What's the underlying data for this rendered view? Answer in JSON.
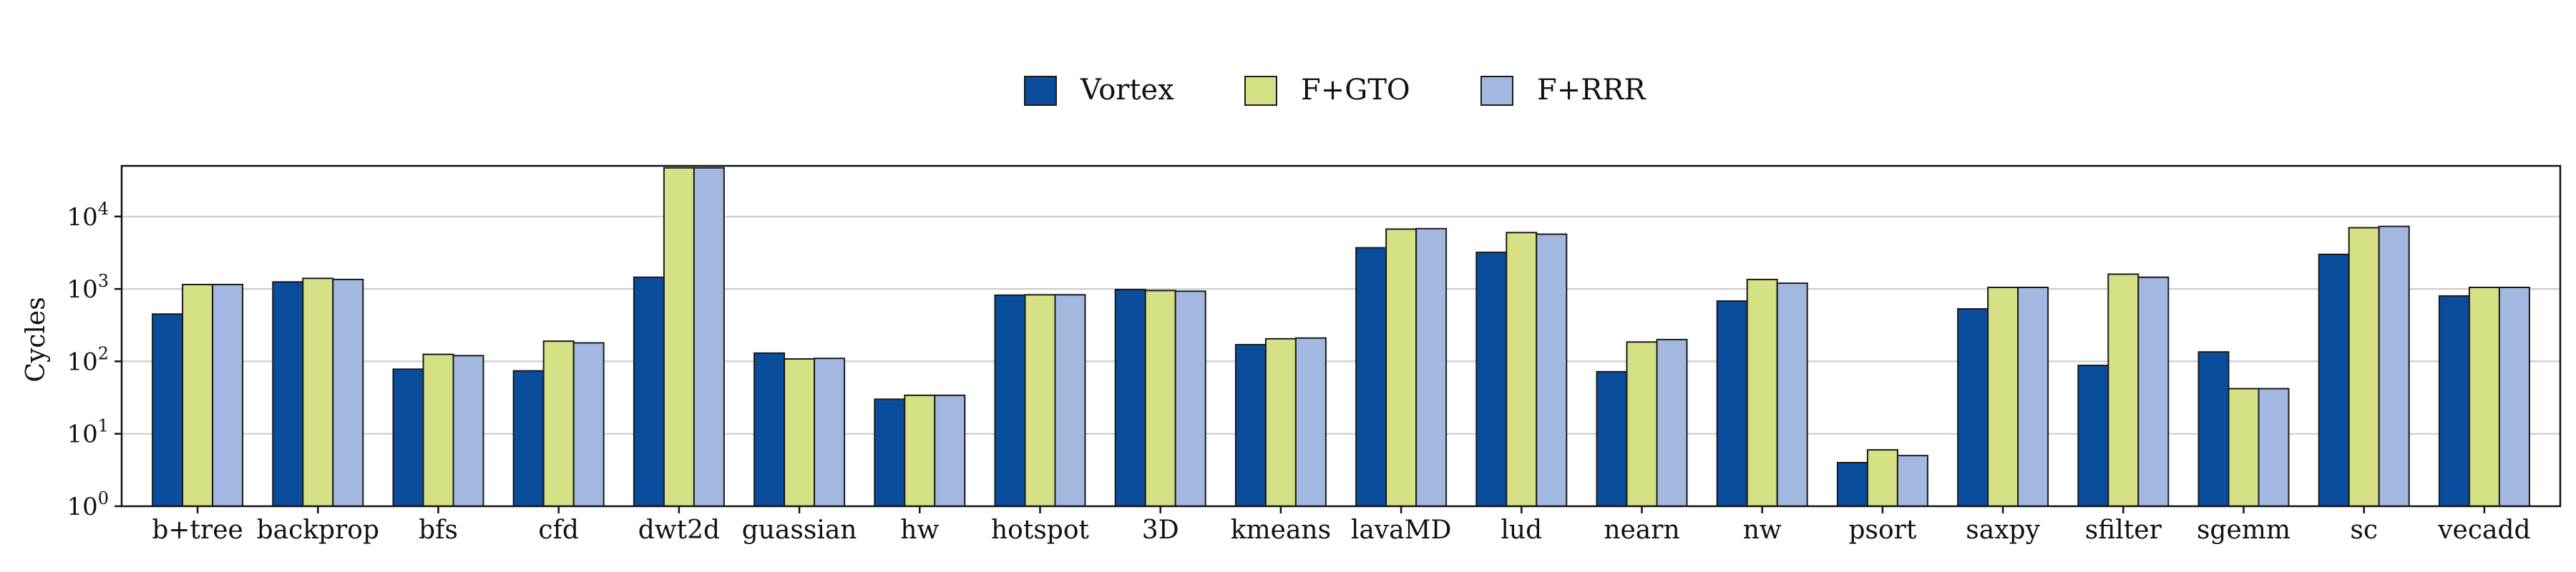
{
  "chart_data": {
    "type": "bar",
    "ylabel": "Cycles",
    "yscale": "log",
    "ylim": [
      1,
      50000
    ],
    "grid": "horizontal",
    "legend_position": "top-center",
    "yticks": [
      {
        "value": 1,
        "base": "10",
        "exp": "0"
      },
      {
        "value": 10,
        "base": "10",
        "exp": "1"
      },
      {
        "value": 100,
        "base": "10",
        "exp": "2"
      },
      {
        "value": 1000,
        "base": "10",
        "exp": "3"
      },
      {
        "value": 10000,
        "base": "10",
        "exp": "4"
      }
    ],
    "categories": [
      "b+tree",
      "backprop",
      "bfs",
      "cfd",
      "dwt2d",
      "guassian",
      "hw",
      "hotspot",
      "3D",
      "kmeans",
      "lavaMD",
      "lud",
      "nearn",
      "nw",
      "psort",
      "saxpy",
      "sfilter",
      "sgemm",
      "sc",
      "vecadd"
    ],
    "series": [
      {
        "name": "Vortex",
        "color": "#0a4d9c",
        "values": [
          450,
          1250,
          78,
          74,
          1450,
          130,
          30,
          820,
          980,
          170,
          3700,
          3200,
          72,
          680,
          4,
          530,
          88,
          135,
          3000,
          800
        ]
      },
      {
        "name": "F+GTO",
        "color": "#d6e084",
        "values": [
          1150,
          1400,
          125,
          190,
          47000,
          108,
          34,
          830,
          950,
          205,
          6700,
          6000,
          185,
          1350,
          6,
          1050,
          1600,
          42,
          7000,
          1050
        ]
      },
      {
        "name": "F+RRR",
        "color": "#a3b8e0",
        "values": [
          1150,
          1350,
          120,
          180,
          47000,
          110,
          34,
          830,
          930,
          210,
          6800,
          5700,
          200,
          1200,
          5,
          1050,
          1450,
          42,
          7300,
          1050
        ]
      }
    ]
  }
}
